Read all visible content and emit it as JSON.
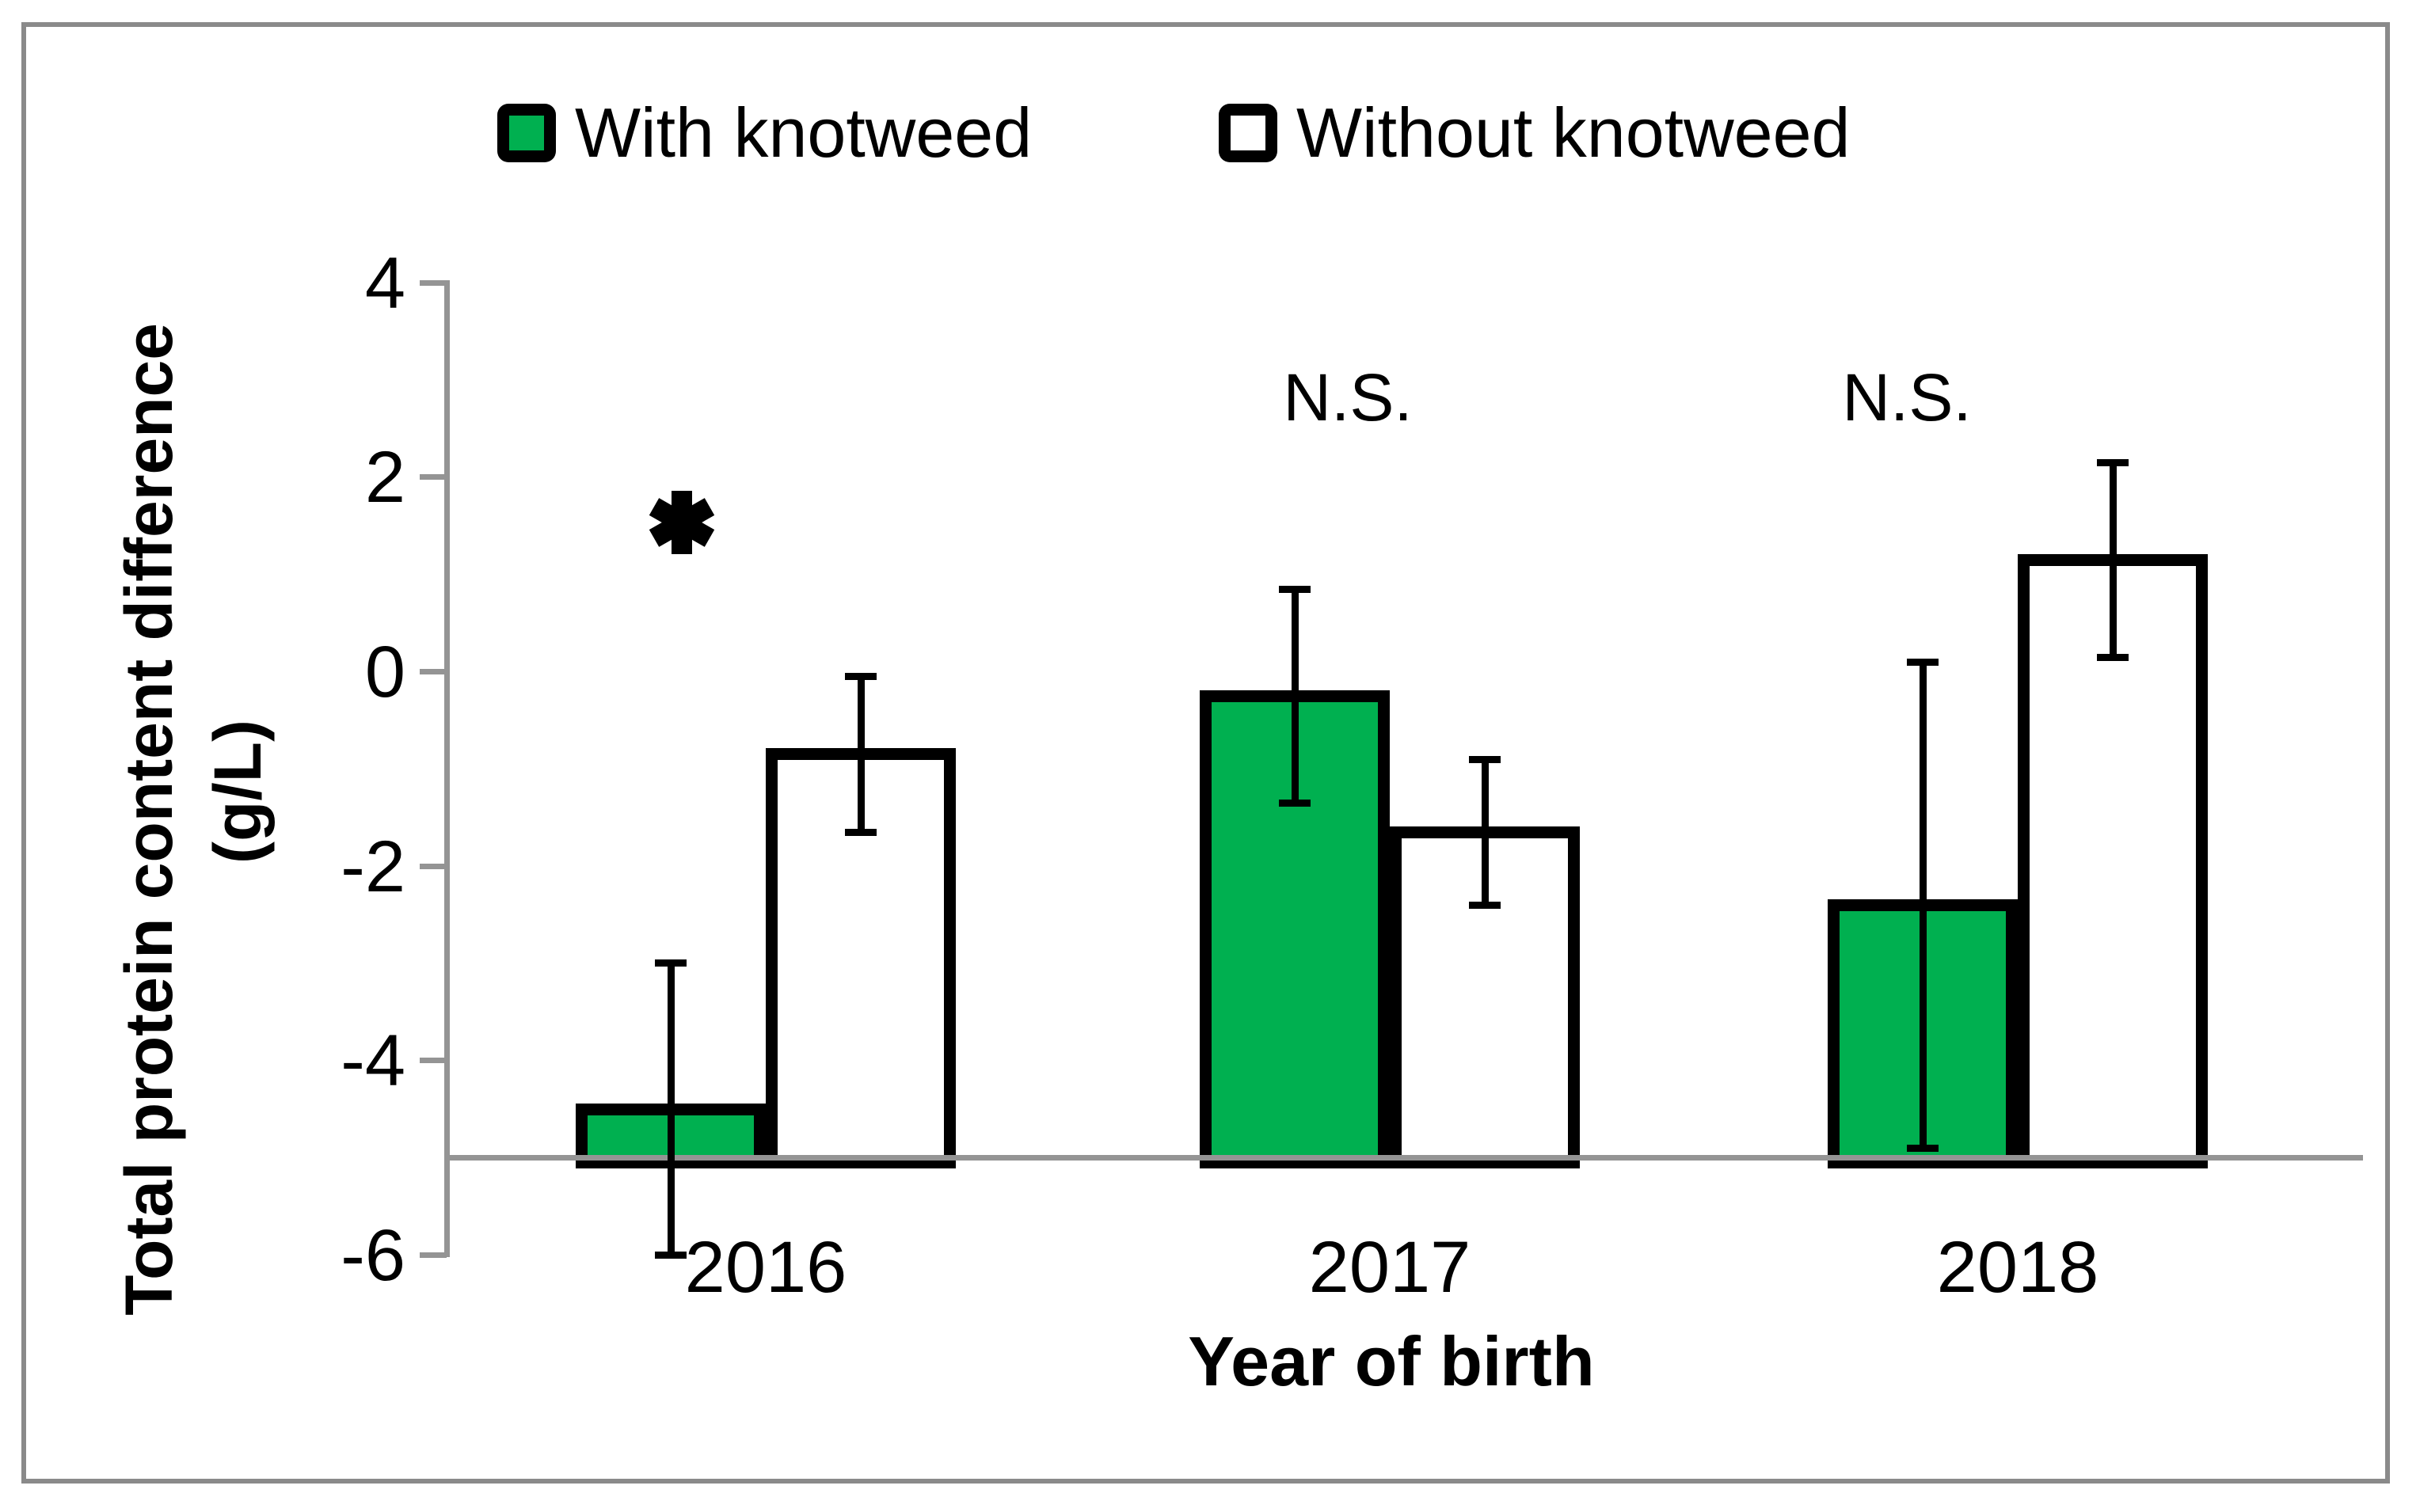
{
  "window": {
    "background": "#ffffff",
    "frame_color": "#8a8a8a"
  },
  "chart_data": {
    "type": "bar",
    "title": "",
    "categories": [
      "2016",
      "2017",
      "2018"
    ],
    "series": [
      {
        "name": "With knotweed",
        "color": "#00B050",
        "values": [
          -4.5,
          -0.25,
          -2.4
        ],
        "error_low": [
          -6.0,
          -1.35,
          -4.9
        ],
        "error_high": [
          -3.0,
          0.85,
          0.1
        ]
      },
      {
        "name": "Without knotweed",
        "color": "#FFFFFF",
        "values": [
          -0.85,
          -1.65,
          1.15
        ],
        "error_low": [
          -1.65,
          -2.4,
          0.15
        ],
        "error_high": [
          -0.05,
          -0.9,
          2.15
        ]
      }
    ],
    "xlabel": "Year of birth",
    "ylabel": "Total protein content difference (g/L)",
    "ylabel_line1": "Total protein content difference",
    "ylabel_line2": "(g/L)",
    "ylim": [
      -6,
      4
    ],
    "yticks": [
      4,
      2,
      0,
      -2,
      -4,
      -6
    ],
    "category_axis_crosses_at": -5,
    "grid": false,
    "legend_position": "top",
    "error_bars": true,
    "annotations": [
      {
        "category": "2016",
        "text": "*"
      },
      {
        "category": "2017",
        "text": "N.S."
      },
      {
        "category": "2018",
        "text": "N.S."
      }
    ],
    "colors": {
      "bar_border": "#000000",
      "axis": "#949494",
      "text": "#000000"
    }
  }
}
